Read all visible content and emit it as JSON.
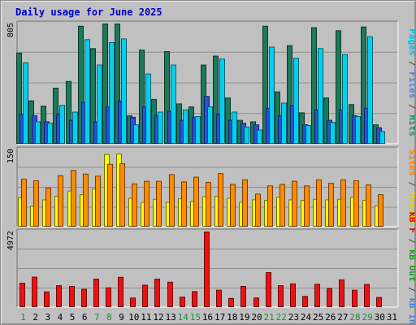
{
  "chart_data": {
    "type": "bar",
    "title": "Daily usage for June 2025",
    "x_ticks": [
      "1",
      "2",
      "3",
      "4",
      "5",
      "6",
      "7",
      "8",
      "9",
      "10",
      "11",
      "12",
      "13",
      "14",
      "15",
      "16",
      "17",
      "18",
      "19",
      "20",
      "21",
      "22",
      "23",
      "24",
      "25",
      "26",
      "27",
      "28",
      "29",
      "30",
      "31"
    ],
    "weekend_days": [
      1,
      7,
      8,
      14,
      15,
      21,
      22,
      28,
      29
    ],
    "panels": [
      {
        "id": "hits",
        "ymax_label": "805",
        "ylim": [
          0,
          805
        ],
        "ylabel_parts": [
          {
            "text": "Hits",
            "color": "#1a8a6a"
          },
          {
            "text": " / ",
            "color": "#444444"
          },
          {
            "text": "Files",
            "color": "#4d7fd6"
          },
          {
            "text": " / ",
            "color": "#444444"
          },
          {
            "text": "Pages",
            "color": "#00c0e0"
          }
        ],
        "series": [
          {
            "name": "Hits",
            "color": "#1a7a5a",
            "values": [
              610,
              290,
              255,
              375,
              420,
              790,
              640,
              805,
              805,
              190,
              630,
              300,
              620,
              270,
              250,
              530,
              590,
              310,
              160,
              150,
              790,
              350,
              660,
              210,
              780,
              310,
              760,
              265,
              785,
              130,
              null
            ]
          },
          {
            "name": "Files",
            "color": "#2b4fd6",
            "values": [
              200,
              190,
              150,
              200,
              160,
              280,
              150,
              250,
              290,
              180,
              250,
              190,
              220,
              160,
              180,
              320,
              200,
              160,
              140,
              130,
              240,
              190,
              260,
              130,
              230,
              160,
              230,
              190,
              240,
              110,
              null
            ]
          },
          {
            "name": "Pages",
            "color": "#00d0f0",
            "values": [
              545,
              150,
              140,
              260,
              215,
              700,
              530,
              680,
              705,
              130,
              470,
              215,
              530,
              230,
              185,
              250,
              570,
              215,
              115,
              95,
              650,
              275,
              575,
              125,
              640,
              145,
              600,
              185,
              720,
              85,
              null
            ]
          }
        ]
      },
      {
        "id": "visits",
        "ymax_label": "150",
        "ylim": [
          0,
          150
        ],
        "ylabel_parts": [
          {
            "text": "Visits",
            "color": "#e6d000"
          },
          {
            "text": " / ",
            "color": "#444444"
          },
          {
            "text": "Sites",
            "color": "#ff8000"
          }
        ],
        "series": [
          {
            "name": "Visits",
            "color": "#ffff00",
            "values": [
              57,
              40,
              53,
              60,
              70,
              63,
              74,
              141,
              142,
              56,
              48,
              54,
              48,
              55,
              50,
              59,
              60,
              56,
              48,
              53,
              52,
              58,
              53,
              52,
              54,
              53,
              54,
              58,
              52,
              41,
              null
            ]
          },
          {
            "name": "Sites",
            "color": "#ff8c00",
            "values": [
              93,
              90,
              76,
              100,
              110,
              103,
              99,
              122,
              123,
              84,
              89,
              89,
              102,
              88,
              97,
              87,
              104,
              83,
              92,
              64,
              80,
              83,
              89,
              80,
              92,
              85,
              92,
              90,
              82,
              63,
              null
            ]
          }
        ]
      },
      {
        "id": "kbytes",
        "ymax_label": "4972",
        "ylim": [
          0,
          4972
        ],
        "ylabel_parts": [
          {
            "text": "kB In",
            "color": "#4d7fd6"
          },
          {
            "text": " / ",
            "color": "#444444"
          },
          {
            "text": "kB Out",
            "color": "#1a9a1a"
          },
          {
            "text": " / ",
            "color": "#444444"
          },
          {
            "text": "kB F",
            "color": "#e00000"
          }
        ],
        "series": [
          {
            "name": "kB F",
            "color": "#ee1111",
            "values": [
              1600,
              2000,
              1030,
              1440,
              1390,
              1200,
              1870,
              1300,
              1990,
              630,
              1470,
              1870,
              1670,
              680,
              1050,
              4972,
              1140,
              600,
              1390,
              630,
              2300,
              1440,
              1560,
              730,
              1530,
              1250,
              1820,
              1140,
              1520,
              660,
              null
            ]
          }
        ]
      }
    ]
  }
}
